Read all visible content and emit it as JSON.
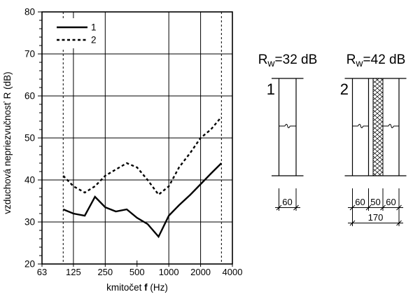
{
  "colors": {
    "foreground": "#000000",
    "background": "#ffffff"
  },
  "chart_data": {
    "type": "line",
    "title": "",
    "xlabel": "kmitočet f (Hz)",
    "xlabel_parts": [
      "kmitočet ",
      "f",
      " (Hz)"
    ],
    "ylabel": "vzduchová nepriezvučnosť R (dB)",
    "xscale": "log",
    "xlim": [
      63,
      4000
    ],
    "ylim": [
      20,
      80
    ],
    "xticks": [
      63,
      125,
      250,
      500,
      1000,
      2000,
      4000
    ],
    "xtick_labels": [
      "63",
      "125",
      "250",
      "500",
      "1000",
      "2000",
      "4000"
    ],
    "yticks": [
      20,
      30,
      40,
      50,
      60,
      70,
      80
    ],
    "ytick_labels": [
      "20",
      "30",
      "40",
      "50",
      "60",
      "70",
      "80"
    ],
    "y_minor_tick_step": 2,
    "grid_x": [
      125,
      250,
      1000,
      2000
    ],
    "grid_y": [
      30,
      40,
      50,
      60,
      70
    ],
    "dashed_vlines": [
      100,
      3150
    ],
    "inner_ticks_x": [
      500
    ],
    "grid": "on",
    "legend_position": "top-left",
    "x": [
      100,
      125,
      160,
      200,
      250,
      315,
      400,
      500,
      630,
      800,
      1000,
      1250,
      1600,
      2000,
      2500,
      3150
    ],
    "series": [
      {
        "name": "1",
        "style": "solid",
        "values": [
          33,
          32,
          31.5,
          36,
          33.5,
          32.5,
          33,
          31,
          29.5,
          26.5,
          31.5,
          34,
          36.5,
          39,
          41.5,
          44
        ]
      },
      {
        "name": "2",
        "style": "dashed",
        "values": [
          41,
          38.5,
          37,
          38.5,
          41,
          42.5,
          44,
          43,
          40,
          36.5,
          38.5,
          43,
          46.5,
          50,
          52,
          55
        ]
      }
    ]
  },
  "diagrams": {
    "wall1": {
      "label": "1",
      "rw_symbol": "R",
      "rw_subscript": "w",
      "rw_value": "=32 dB",
      "dim_width": "60"
    },
    "wall2": {
      "label": "2",
      "rw_symbol": "R",
      "rw_subscript": "w",
      "rw_value": "=42 dB",
      "dim_leaf1": "60",
      "dim_core": "50",
      "dim_leaf2": "60",
      "dim_total": "170"
    }
  }
}
